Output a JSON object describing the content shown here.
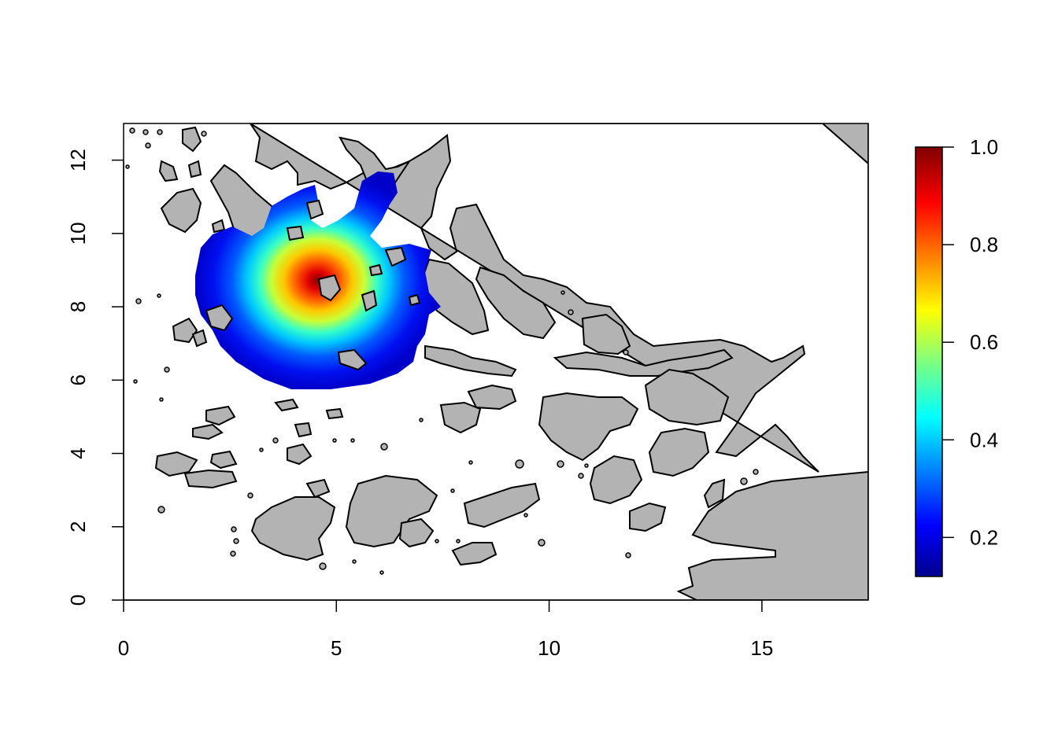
{
  "chart_data": {
    "type": "heatmap",
    "xlim": [
      0,
      17.5
    ],
    "ylim": [
      0,
      13
    ],
    "x_ticks": [
      "0",
      "5",
      "10",
      "15"
    ],
    "y_ticks": [
      "0",
      "2",
      "4",
      "6",
      "8",
      "10",
      "12"
    ],
    "colorbar": {
      "ticks": [
        "0.2",
        "0.4",
        "0.6",
        "0.8",
        "1.0"
      ],
      "range": [
        0.12,
        1.0
      ],
      "palette": "jet"
    },
    "peak": {
      "x": 4.85,
      "y": 8.95,
      "value": 1.0
    },
    "colors": {
      "land": "#b3b3b3",
      "water": "#ffffff",
      "outline": "#000000"
    }
  }
}
